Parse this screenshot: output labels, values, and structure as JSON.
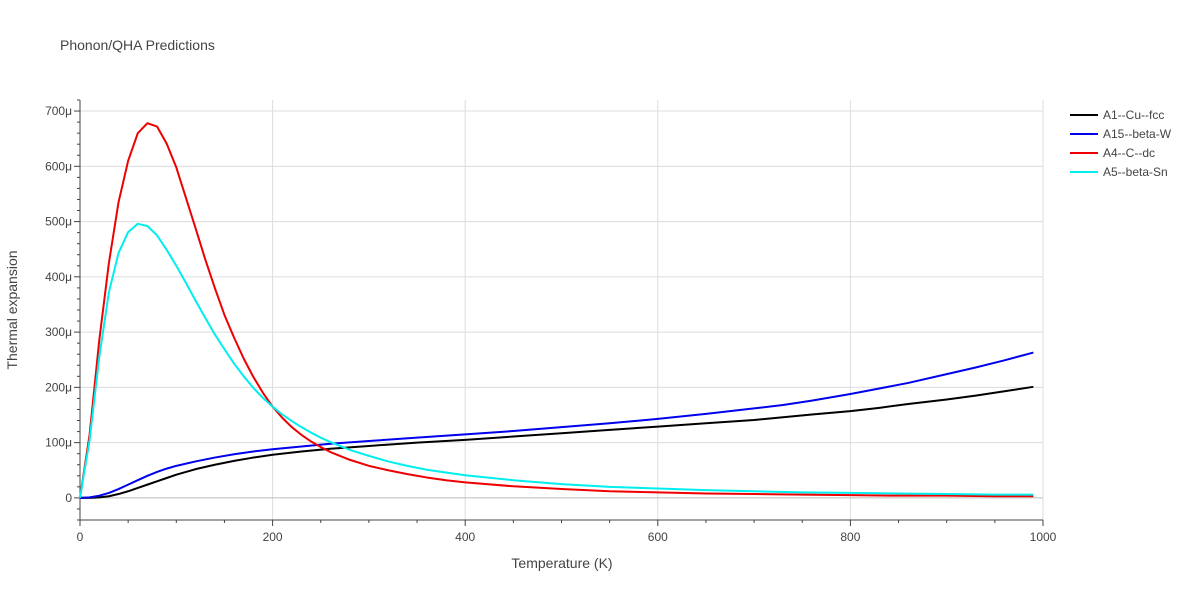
{
  "chart_data": {
    "type": "line",
    "title": "Phonon/QHA Predictions",
    "xlabel": "Temperature (K)",
    "ylabel": "Thermal expansion",
    "xlim": [
      0,
      1000
    ],
    "ylim": [
      -4e-05,
      0.00072
    ],
    "x_ticks": [
      0,
      200,
      400,
      600,
      800,
      1000
    ],
    "x_tick_labels": [
      "0",
      "200",
      "400",
      "600",
      "800",
      "1000"
    ],
    "y_ticks": [
      0,
      0.0001,
      0.0002,
      0.0003,
      0.0004,
      0.0005,
      0.0006,
      0.0007
    ],
    "y_tick_labels": [
      "0",
      "100μ",
      "200μ",
      "300μ",
      "400μ",
      "500μ",
      "600μ",
      "700μ"
    ],
    "grid": true,
    "legend_position": "top-right",
    "series": [
      {
        "name": "A1--Cu--fcc",
        "color": "#000000",
        "x": [
          0,
          10,
          20,
          30,
          40,
          50,
          60,
          70,
          80,
          90,
          100,
          120,
          140,
          160,
          180,
          200,
          230,
          260,
          300,
          350,
          400,
          450,
          500,
          550,
          600,
          650,
          700,
          730,
          760,
          800,
          830,
          860,
          900,
          930,
          960,
          990
        ],
        "y": [
          0,
          0,
          1e-06,
          3e-06,
          7e-06,
          1.2e-05,
          1.8e-05,
          2.4e-05,
          3e-05,
          3.6e-05,
          4.2e-05,
          5.2e-05,
          6e-05,
          6.7e-05,
          7.3e-05,
          7.8e-05,
          8.4e-05,
          8.9e-05,
          9.4e-05,
          0.0001,
          0.000105,
          0.000111,
          0.000117,
          0.000123,
          0.000129,
          0.000135,
          0.000141,
          0.000146,
          0.000151,
          0.000157,
          0.000163,
          0.00017,
          0.000178,
          0.000185,
          0.000193,
          0.000201
        ]
      },
      {
        "name": "A15--beta-W",
        "color": "#0000ee",
        "x": [
          0,
          10,
          20,
          30,
          40,
          50,
          60,
          70,
          80,
          90,
          100,
          120,
          140,
          160,
          180,
          200,
          230,
          260,
          300,
          350,
          400,
          450,
          500,
          550,
          600,
          650,
          700,
          730,
          760,
          800,
          830,
          860,
          900,
          930,
          960,
          990
        ],
        "y": [
          0,
          1e-06,
          4e-06,
          9e-06,
          1.6e-05,
          2.4e-05,
          3.2e-05,
          4e-05,
          4.7e-05,
          5.3e-05,
          5.8e-05,
          6.6e-05,
          7.3e-05,
          7.9e-05,
          8.4e-05,
          8.8e-05,
          9.3e-05,
          9.8e-05,
          0.000103,
          0.000109,
          0.000115,
          0.000121,
          0.000128,
          0.000135,
          0.000143,
          0.000152,
          0.000162,
          0.000168,
          0.000176,
          0.000188,
          0.000198,
          0.000208,
          0.000224,
          0.000236,
          0.000249,
          0.000263
        ]
      },
      {
        "name": "A4--C--dc",
        "color": "#ee0000",
        "x": [
          0,
          10,
          20,
          30,
          40,
          50,
          60,
          70,
          80,
          90,
          100,
          110,
          120,
          130,
          140,
          150,
          160,
          170,
          180,
          190,
          200,
          210,
          220,
          230,
          240,
          250,
          260,
          280,
          300,
          320,
          340,
          360,
          380,
          400,
          450,
          500,
          550,
          600,
          650,
          700,
          750,
          800,
          850,
          900,
          950,
          990
        ],
        "y": [
          0,
          0.000115,
          0.000285,
          0.000425,
          0.000535,
          0.00061,
          0.00066,
          0.000678,
          0.000672,
          0.000641,
          0.000598,
          0.000543,
          0.000488,
          0.000432,
          0.00038,
          0.000331,
          0.00029,
          0.000252,
          0.000219,
          0.00019,
          0.000165,
          0.000145,
          0.000128,
          0.000114,
          0.000102,
          9.2e-05,
          8.3e-05,
          6.9e-05,
          5.8e-05,
          5e-05,
          4.3e-05,
          3.7e-05,
          3.2e-05,
          2.8e-05,
          2.1e-05,
          1.6e-05,
          1.2e-05,
          1e-05,
          8e-06,
          7e-06,
          6e-06,
          5e-06,
          4e-06,
          4e-06,
          3e-06,
          3e-06
        ]
      },
      {
        "name": "A5--beta-Sn",
        "color": "#00eeee",
        "x": [
          0,
          10,
          20,
          30,
          40,
          50,
          60,
          70,
          80,
          90,
          100,
          110,
          120,
          130,
          140,
          150,
          160,
          170,
          180,
          190,
          200,
          210,
          220,
          230,
          240,
          250,
          260,
          280,
          300,
          320,
          340,
          360,
          380,
          400,
          450,
          500,
          550,
          600,
          650,
          700,
          750,
          800,
          850,
          900,
          950,
          990
        ],
        "y": [
          0,
          0.000105,
          0.000255,
          0.000372,
          0.000443,
          0.000481,
          0.000496,
          0.000492,
          0.000475,
          0.000449,
          0.00042,
          0.000389,
          0.000357,
          0.000326,
          0.000296,
          0.000269,
          0.000243,
          0.00022,
          0.000199,
          0.000181,
          0.000165,
          0.000151,
          0.000139,
          0.000128,
          0.000118,
          0.000109,
          0.000101,
          8.7e-05,
          7.6e-05,
          6.6e-05,
          5.8e-05,
          5.1e-05,
          4.6e-05,
          4.1e-05,
          3.2e-05,
          2.5e-05,
          2e-05,
          1.7e-05,
          1.4e-05,
          1.2e-05,
          1e-05,
          9e-06,
          8e-06,
          7e-06,
          6e-06,
          6e-06
        ]
      }
    ]
  }
}
